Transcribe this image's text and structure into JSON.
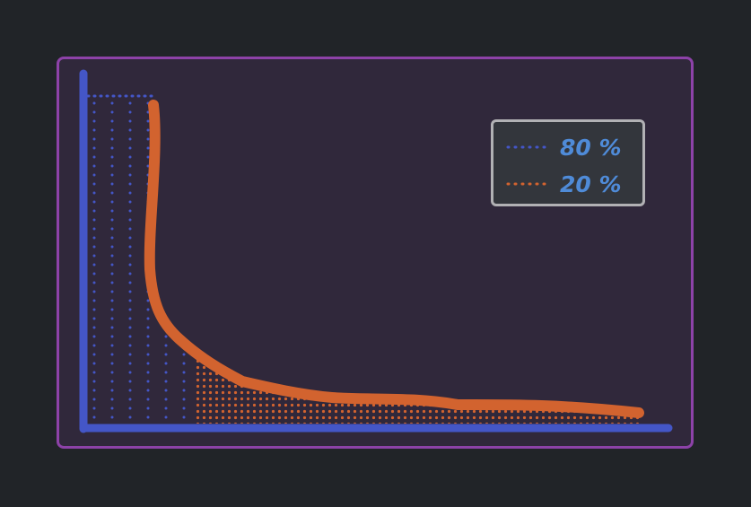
{
  "colors": {
    "page_background": "#212428",
    "frame_border": "#8d42a8",
    "frame_fill": "#30283b",
    "axis": "#4456c7",
    "curve": "#d2632f",
    "dots_blue": "#4456c7",
    "dots_orange": "#d2632f",
    "legend_fill": "#33363c",
    "legend_border": "#b1b1b4",
    "legend_text": "#4f8bd8"
  },
  "legend": {
    "items": [
      {
        "label": "80 %",
        "color": "#4456c7",
        "style": "dotted"
      },
      {
        "label": "20 %",
        "color": "#d2632f",
        "style": "dotted"
      }
    ]
  }
}
